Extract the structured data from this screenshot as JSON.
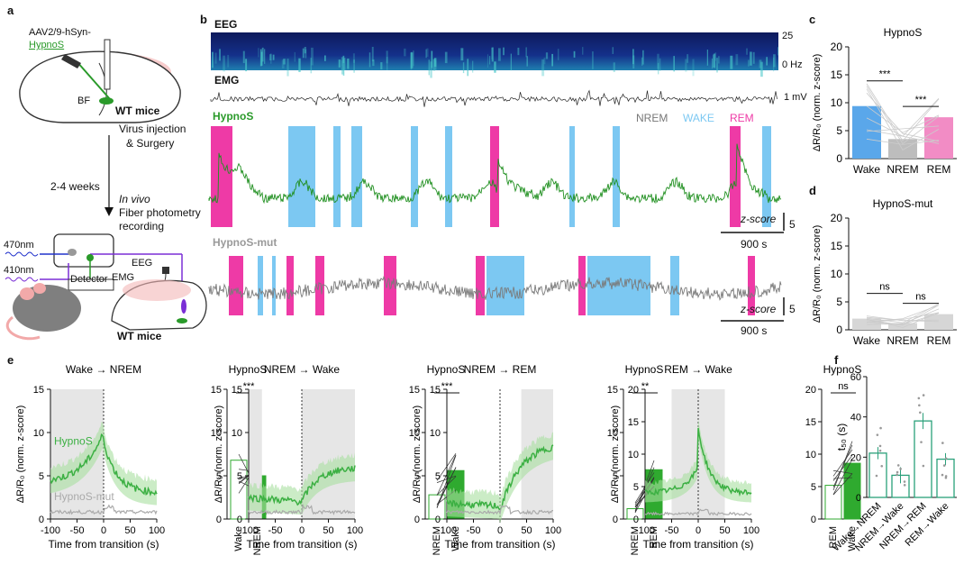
{
  "panel_letters": {
    "a": "a",
    "b": "b",
    "c": "c",
    "d": "d",
    "e": "e",
    "f": "f"
  },
  "panel_a": {
    "virus": "AAV2/9-hSyn-",
    "sensor": "HypnoS",
    "bf": "BF",
    "mice1": "WT mice",
    "step1a": "Virus injection",
    "step1b": "& Surgery",
    "weeks": "2-4 weeks",
    "invivo": "In vivo",
    "step2a": "Fiber photometry",
    "step2b": "recording",
    "l470": "470nm",
    "l410": "410nm",
    "detector": "Detector",
    "eeg": "EEG",
    "emg": "EMG",
    "mice2": "WT mice",
    "colors": {
      "green": "#2a9a2a",
      "purple": "#7b2fd6",
      "blue": "#2233cc",
      "pink": "#f4b7b7"
    }
  },
  "panel_b": {
    "eeg": "EEG",
    "emg": "EMG",
    "hypnos": "HypnoS",
    "hypnos_mut": "HypnoS-mut",
    "f_top": "25",
    "f_bot": "0 Hz",
    "emg_scale": "1 mV",
    "legend": {
      "nrem": "NREM",
      "wake": "WAKE",
      "rem": "REM"
    },
    "zscore": "z-score",
    "zval": "5",
    "time_scale": "900 s",
    "colors": {
      "wake": "#7cc8f2",
      "rem": "#ee3aa6",
      "nrem": "#777777",
      "trace": "#1f8f1f",
      "mut": "#7a7a7a"
    }
  },
  "chart_data": [
    {
      "panel": "c",
      "type": "bar",
      "title": "HypnoS",
      "ylabel": "ΔR/R₀ (norm. z-score)",
      "categories": [
        "Wake",
        "NREM",
        "REM"
      ],
      "values": [
        9.4,
        3.5,
        7.4
      ],
      "ylim": [
        0,
        20
      ],
      "yticks": [
        "0",
        "5",
        "10",
        "15",
        "20"
      ],
      "significance": [
        "***",
        "***"
      ],
      "colors": [
        "#5aa7ea",
        "#bdbdbd",
        "#f28cc5"
      ]
    },
    {
      "panel": "d",
      "type": "bar",
      "title": "HypnoS-mut",
      "ylabel": "ΔR/R₀ (norm. z-score)",
      "categories": [
        "Wake",
        "NREM",
        "REM"
      ],
      "values": [
        2.0,
        1.2,
        2.8
      ],
      "ylim": [
        0,
        20
      ],
      "yticks": [
        "0",
        "5",
        "10",
        "15",
        "20"
      ],
      "significance": [
        "ns",
        "ns"
      ],
      "colors": [
        "#d6d6d6",
        "#d6d6d6",
        "#d6d6d6"
      ]
    },
    {
      "panel": "e",
      "type": "line",
      "xlabel": "Time from transition (s)",
      "ylabel": "ΔR/R₀ (norm. z-score)",
      "xticks": [
        "-100",
        "-50",
        "0",
        "50",
        "100"
      ],
      "subplots": [
        {
          "title": "Wake → NREM",
          "yticks": [
            "0",
            "5",
            "10",
            "15"
          ],
          "ymax": 15,
          "labels": [
            "HypnoS",
            "HypnoS-mut"
          ]
        },
        {
          "title": "NREM → Wake",
          "yticks": [
            "0",
            "5",
            "10",
            "15"
          ],
          "ymax": 15
        },
        {
          "title": "NREM → REM",
          "yticks": [
            "0",
            "5",
            "10",
            "15"
          ],
          "ymax": 15
        },
        {
          "title": "REM → Wake",
          "yticks": [
            "0",
            "5",
            "10",
            "15",
            "20"
          ],
          "ymax": 20
        }
      ]
    },
    {
      "panel": "e-insets",
      "type": "bar",
      "title": "HypnoS",
      "insets": [
        {
          "categories": [
            "Wake",
            "NREM"
          ],
          "values": [
            6.8,
            5.0
          ],
          "ymax": 15,
          "yticks": [
            "0",
            "5",
            "10",
            "15"
          ],
          "sig": "***"
        },
        {
          "categories": [
            "NREM",
            "Wake"
          ],
          "values": [
            2.8,
            5.6
          ],
          "ymax": 15,
          "yticks": [
            "0",
            "5",
            "10",
            "15"
          ],
          "sig": "***"
        },
        {
          "categories": [
            "NREM",
            "REM"
          ],
          "values": [
            1.2,
            5.7
          ],
          "ymax": 15,
          "yticks": [
            "0",
            "5",
            "10",
            "15"
          ],
          "sig": "**"
        },
        {
          "categories": [
            "REM",
            "Wake"
          ],
          "values": [
            5.2,
            8.6
          ],
          "ymax": 20,
          "yticks": [
            "0",
            "5",
            "10",
            "15",
            "20"
          ],
          "sig": "ns"
        }
      ]
    },
    {
      "panel": "f",
      "type": "bar",
      "ylabel": "t₅₀ (s)",
      "categories": [
        "Wake→NREM",
        "NREM→Wake",
        "NREM→REM",
        "REM→Wake"
      ],
      "values": [
        22,
        11,
        38,
        19
      ],
      "errors": [
        3,
        4,
        4,
        3
      ],
      "ylim": [
        0,
        60
      ],
      "yticks": [
        "0",
        "20",
        "40",
        "60"
      ]
    }
  ]
}
